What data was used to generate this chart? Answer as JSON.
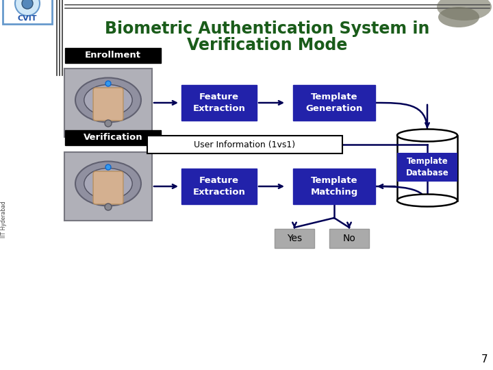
{
  "title_line1": "Biometric Authentication System in",
  "title_line2": "Verification Mode",
  "title_color": "#1a5c1a",
  "bg_color": "#ffffff",
  "enrollment_label": "Enrollment",
  "verification_label": "Verification",
  "feature_extraction_1": "Feature\nExtraction",
  "template_generation": "Template\nGeneration",
  "template_database": "Template\nDatabase",
  "feature_extraction_2": "Feature\nExtraction",
  "template_matching": "Template\nMatching",
  "user_info": "User Information (1vs1)",
  "yes_label": "Yes",
  "no_label": "No",
  "box_color": "#2222aa",
  "box_text_color": "#ffffff",
  "enrollment_bg": "#000000",
  "label_text_color": "#ffffff",
  "gray_box_color": "#aaaaaa",
  "arrow_color": "#000055",
  "page_number": "7",
  "side_text": "IIT Hyderabad"
}
